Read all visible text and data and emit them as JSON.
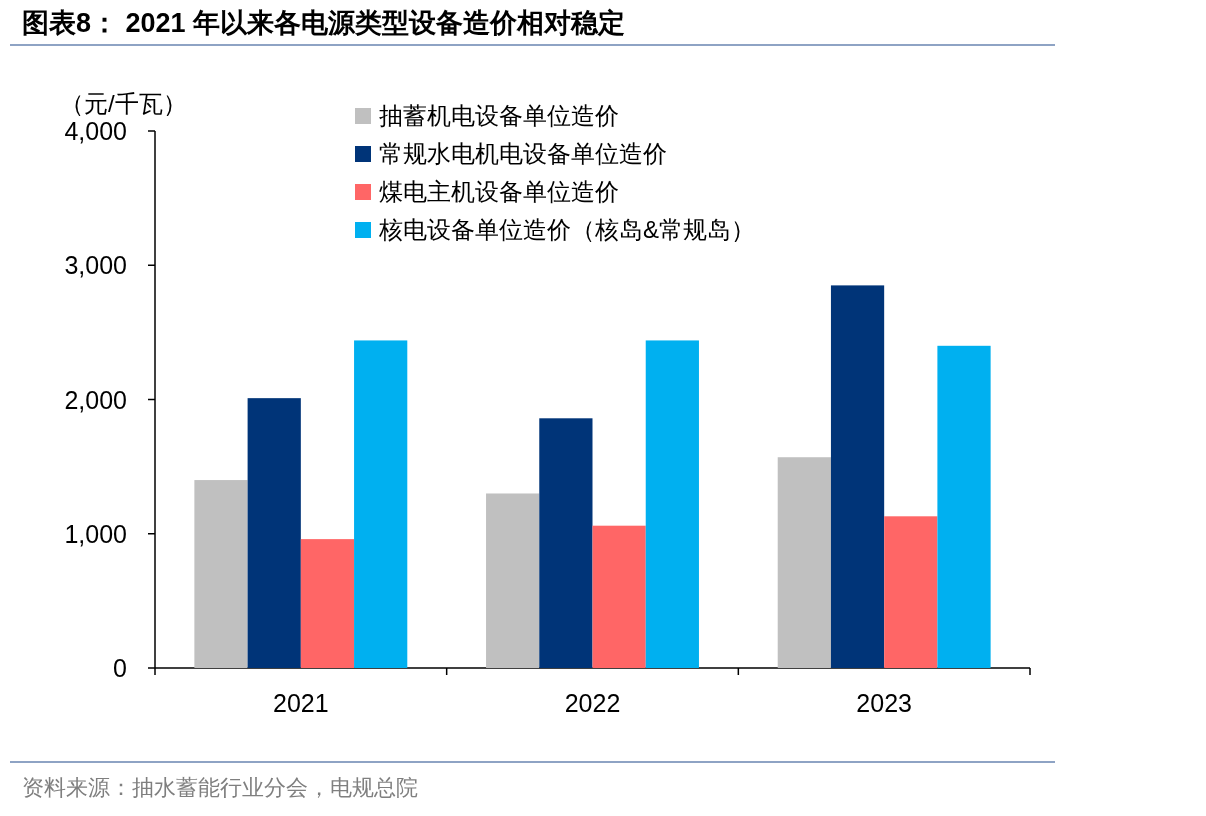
{
  "chart_data": {
    "type": "bar",
    "title": "图表8：  2021 年以来各电源类型设备造价相对稳定",
    "ylabel": "（元/千瓦）",
    "categories": [
      "2021",
      "2022",
      "2023"
    ],
    "series": [
      {
        "name": "抽蓄机电设备单位造价",
        "color": "#c0c0c0",
        "values": [
          1400,
          1300,
          1570
        ]
      },
      {
        "name": "常规水电机电设备单位造价",
        "color": "#003478",
        "values": [
          2010,
          1860,
          2850
        ]
      },
      {
        "name": "煤电主机设备单位造价",
        "color": "#ff6666",
        "values": [
          960,
          1060,
          1130
        ]
      },
      {
        "name": "核电设备单位造价（核岛&常规岛）",
        "color": "#00b0f0",
        "values": [
          2440,
          2440,
          2400
        ]
      }
    ],
    "ylim": [
      0,
      4000
    ],
    "yticks": [
      0,
      {
        "value": 1000,
        "label": "1,000"
      },
      {
        "value": 2000,
        "label": "2,000"
      },
      {
        "value": 3000,
        "label": "3,000"
      },
      {
        "value": 4000,
        "label": "4,000"
      }
    ],
    "legend": "top",
    "grid": false,
    "annotations": [
      "资料来源：抽水蓄能行业分会，电规总院"
    ]
  }
}
